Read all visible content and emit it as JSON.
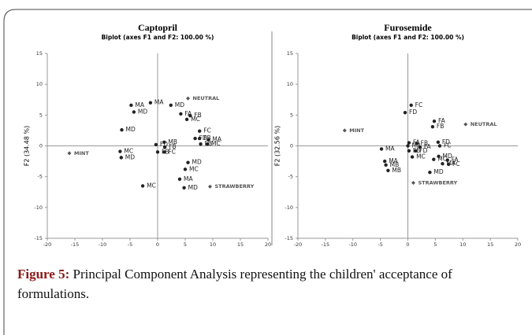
{
  "chart_data": [
    {
      "type": "scatter",
      "title": "Captopril",
      "subtitle": "Biplot (axes F1 and F2: 100.00 %)",
      "y_label": "F2 (34.48 %)",
      "xlim": [
        -20,
        20
      ],
      "ylim": [
        -15,
        15
      ],
      "xticks": [
        -20,
        -15,
        -10,
        -5,
        0,
        5,
        10,
        15,
        20
      ],
      "yticks": [
        -15,
        -10,
        -5,
        0,
        5,
        10,
        15
      ],
      "points": {
        "color": "#222222",
        "x": [
          -1.3,
          2.4,
          -4.3,
          -4.8,
          4.2,
          5.3,
          5.9,
          -6.5,
          7.6,
          6.8,
          7.6,
          9.2,
          7.8,
          9.0,
          -0.3,
          1.2,
          1.3,
          0.0,
          1.2,
          -6.8,
          -6.6,
          5.5,
          5.0,
          4.0,
          4.8,
          -2.7
        ],
        "y": [
          7.0,
          6.6,
          5.5,
          6.6,
          5.2,
          4.3,
          4.9,
          2.6,
          2.4,
          1.2,
          1.2,
          1.0,
          0.3,
          0.3,
          0.2,
          0.6,
          -0.2,
          -1.0,
          -1.0,
          -0.9,
          -1.9,
          -2.7,
          -3.8,
          -5.4,
          -6.8,
          -6.5
        ],
        "labels": [
          "MA",
          "MD",
          "MD",
          "MA",
          "FA",
          "MC",
          "FB",
          "MD",
          "FC",
          "FD",
          "FB",
          "MA",
          "FB",
          "MC",
          "FD",
          "MB",
          "FB",
          "FB",
          "FC",
          "MC",
          "MD",
          "MD",
          "MC",
          "MA",
          "MD",
          "MC"
        ]
      },
      "variables": {
        "color": "#555555",
        "x": [
          5.5,
          9.5,
          -16.0
        ],
        "y": [
          7.7,
          -6.6,
          -1.2
        ],
        "labels": [
          "NEUTRAL",
          "STRAWBERRY",
          "MINT"
        ]
      }
    },
    {
      "type": "scatter",
      "title": "Furosemide",
      "subtitle": "Biplot (axes F1 and F2: 100.00 %)",
      "y_label": "F2 (32.56 %)",
      "xlim": [
        -20,
        20
      ],
      "ylim": [
        -15,
        15
      ],
      "xticks": [
        -20,
        -15,
        -10,
        -5,
        0,
        5,
        10,
        15,
        20
      ],
      "yticks": [
        -15,
        -10,
        -5,
        0,
        5,
        10,
        15
      ],
      "points": {
        "color": "#222222",
        "x": [
          0.6,
          -0.5,
          4.8,
          4.5,
          5.5,
          5.8,
          -4.8,
          0.0,
          1.6,
          0.2,
          2.2,
          0.2,
          1.4,
          0.8,
          5.6,
          4.7,
          7.2,
          6.3,
          7.4,
          -4.2,
          -4.0,
          -3.6,
          4.0
        ],
        "y": [
          6.6,
          5.4,
          4.0,
          3.1,
          0.6,
          0.0,
          -0.5,
          0.0,
          0.4,
          0.5,
          -0.2,
          -0.8,
          -0.8,
          -1.8,
          -1.7,
          -2.2,
          -2.3,
          -2.9,
          -3.0,
          -2.5,
          -3.1,
          -4.0,
          -4.3
        ],
        "labels": [
          "FC",
          "FD",
          "FA",
          "FB",
          "FD",
          "FC",
          "MA",
          "MA",
          "FB",
          "FA",
          "FA",
          "FB",
          "FD",
          "MC",
          "MD",
          "MC",
          "FA",
          "MA",
          "FC",
          "MA",
          "MB",
          "MB",
          "MD"
        ]
      },
      "variables": {
        "color": "#555555",
        "x": [
          10.5,
          1.0,
          -11.5
        ],
        "y": [
          3.5,
          -6.0,
          2.5
        ],
        "labels": [
          "NEUTRAL",
          "STRAWBERRY",
          "MINT"
        ]
      }
    }
  ],
  "caption": {
    "label": "Figure 5:",
    "text": " Principal Component Analysis representing the children' acceptance of formulations."
  }
}
